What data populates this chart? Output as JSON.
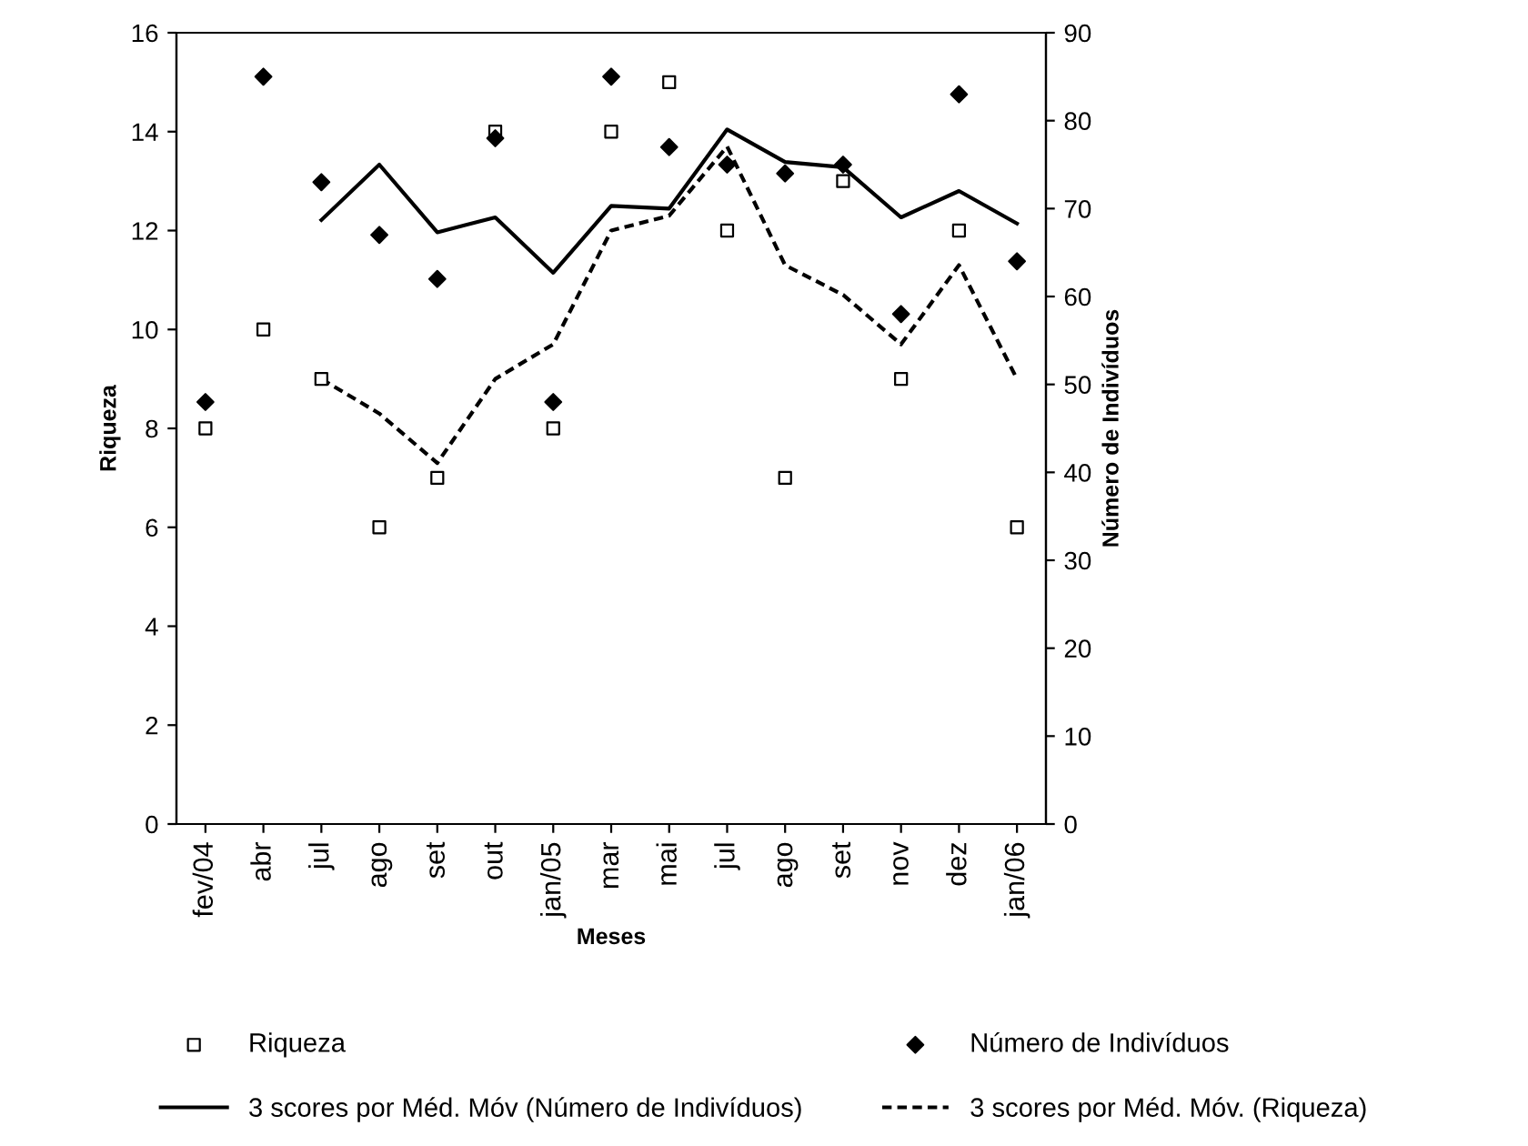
{
  "chart_data": {
    "type": "scatter",
    "xlabel": "Meses",
    "ylabel": "Riqueza",
    "y2label": "Número de Indivíduos",
    "categories": [
      "fev/04",
      "abr",
      "jul",
      "ago",
      "set",
      "out",
      "jan/05",
      "mar",
      "mai",
      "jul",
      "ago",
      "set",
      "nov",
      "dez",
      "jan/06"
    ],
    "series": [
      {
        "name": "Riqueza",
        "marker": "square",
        "color": "#000000",
        "values": [
          8,
          10,
          9,
          6,
          7,
          14,
          8,
          14,
          15,
          12,
          7,
          13,
          9,
          12,
          6
        ]
      },
      {
        "name": "Número de Indivíduos",
        "marker": "diamond",
        "axis": "y2",
        "color": "#000000",
        "values": [
          48,
          85,
          73,
          67,
          62,
          78,
          48,
          85,
          77,
          75,
          74,
          75,
          58,
          83,
          64
        ]
      },
      {
        "name": "3 scores por Méd. Móv (Número de Indivíduos)",
        "type": "line",
        "line_style": "solid",
        "axis": "y2",
        "color": "#000000",
        "values": [
          null,
          null,
          68.7,
          75.0,
          67.3,
          69.0,
          62.7,
          70.3,
          70.0,
          79.0,
          75.3,
          74.7,
          69.0,
          72.0,
          68.3
        ]
      },
      {
        "name": "3 scores por Méd. Móv. (Riqueza)",
        "type": "line",
        "line_style": "dashed",
        "color": "#000000",
        "values": [
          null,
          null,
          9.0,
          8.3,
          7.3,
          9.0,
          9.7,
          12.0,
          12.3,
          13.7,
          11.3,
          10.7,
          9.7,
          11.3,
          9.0
        ]
      }
    ],
    "ylim": [
      0,
      16
    ],
    "yticks": [
      0,
      2,
      4,
      6,
      8,
      10,
      12,
      14,
      16
    ],
    "y2lim": [
      0,
      90
    ],
    "y2ticks": [
      0,
      10,
      20,
      30,
      40,
      50,
      60,
      70,
      80,
      90
    ],
    "legend": "bottom",
    "grid": false
  }
}
